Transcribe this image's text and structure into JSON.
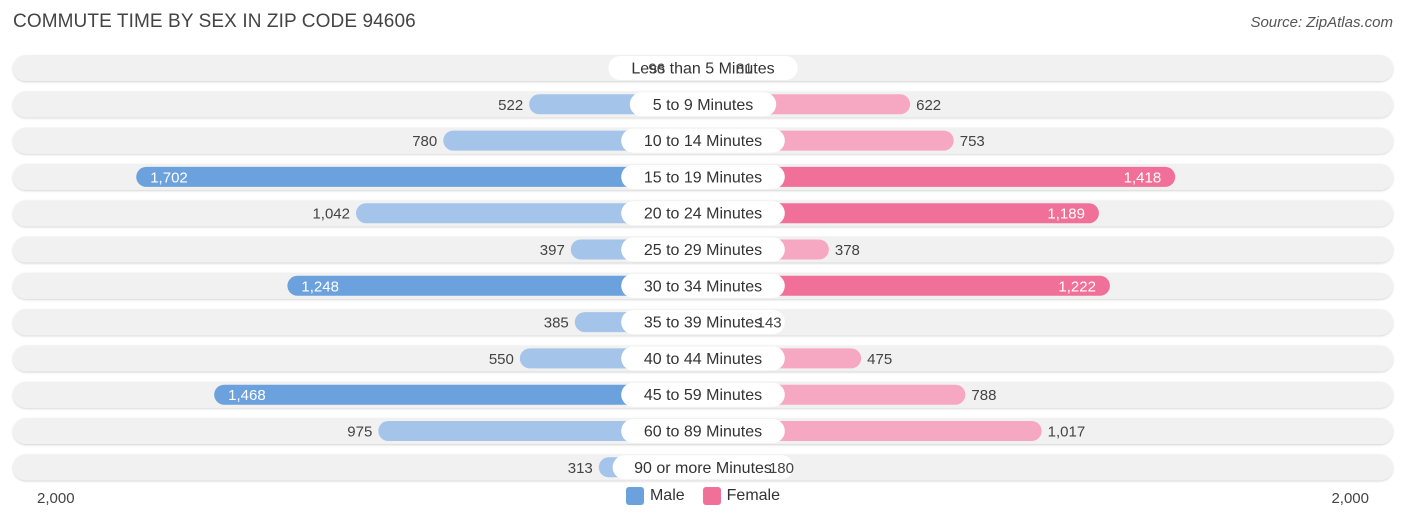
{
  "title": "COMMUTE TIME BY SEX IN ZIP CODE 94606",
  "source": "Source: ZipAtlas.com",
  "colors": {
    "male_light": "#a4c4ea",
    "male_dark": "#6ba1dd",
    "female_light": "#f6a8c2",
    "female_dark": "#f07099",
    "row_bg": "#f1f1f1"
  },
  "chart_data": {
    "type": "bar",
    "orientation": "horizontal-diverging",
    "categories": [
      "Less than 5 Minutes",
      "5 to 9 Minutes",
      "10 to 14 Minutes",
      "15 to 19 Minutes",
      "20 to 24 Minutes",
      "25 to 29 Minutes",
      "30 to 34 Minutes",
      "35 to 39 Minutes",
      "40 to 44 Minutes",
      "45 to 59 Minutes",
      "60 to 89 Minutes",
      "90 or more Minutes"
    ],
    "series": [
      {
        "name": "Male",
        "values": [
          96,
          522,
          780,
          1702,
          1042,
          397,
          1248,
          385,
          550,
          1468,
          975,
          313
        ],
        "labels": [
          "96",
          "522",
          "780",
          "1,702",
          "1,042",
          "397",
          "1,248",
          "385",
          "550",
          "1,468",
          "975",
          "313"
        ]
      },
      {
        "name": "Female",
        "values": [
          81,
          622,
          753,
          1418,
          1189,
          378,
          1222,
          143,
          475,
          788,
          1017,
          180
        ],
        "labels": [
          "81",
          "622",
          "753",
          "1,418",
          "1,189",
          "378",
          "1,222",
          "143",
          "475",
          "788",
          "1,017",
          "180"
        ]
      }
    ],
    "xlim": [
      -2000,
      2000
    ],
    "axis_tick_labels": [
      "2,000",
      "2,000"
    ],
    "legend_position": "bottom-center"
  }
}
